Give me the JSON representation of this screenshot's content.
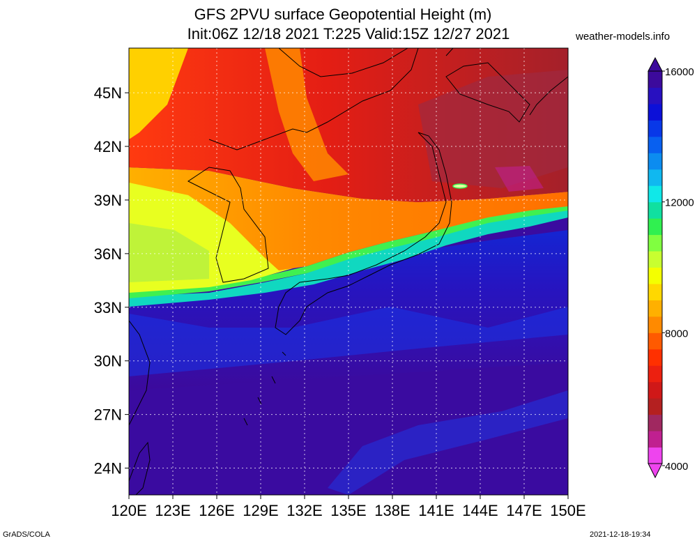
{
  "header": {
    "title": "GFS 2PVU surface Geopotential Height (m)",
    "subtitle": "Init:06Z 12/18 2021 T:225 Valid:15Z 12/27 2021",
    "credit": "weather-models.info"
  },
  "footer": {
    "left": "GrADS/COLA",
    "right": "2021-12-18-19:34"
  },
  "map": {
    "lon_range": [
      120,
      150
    ],
    "lat_range": [
      22.5,
      47.5
    ],
    "lon_ticks": [
      "120E",
      "123E",
      "126E",
      "129E",
      "132E",
      "135E",
      "138E",
      "141E",
      "144E",
      "147E",
      "150E"
    ],
    "lat_ticks": [
      "45N",
      "42N",
      "39N",
      "36N",
      "33N",
      "30N",
      "27N",
      "24N"
    ],
    "grid": "dotted"
  },
  "colorbar": {
    "labels": [
      "16000",
      "12000",
      "8000",
      "4000"
    ],
    "min": 4000,
    "max": 16000,
    "colors": [
      "#ee44ee",
      "#c02090",
      "#a02860",
      "#b42020",
      "#d01818",
      "#ec2010",
      "#ff3000",
      "#ff5a00",
      "#ff8a00",
      "#ffb000",
      "#ffd800",
      "#f4ff00",
      "#c8ff30",
      "#80ff40",
      "#30f050",
      "#10e0a0",
      "#10e8e8",
      "#10b8f0",
      "#0c8cf0",
      "#0860f0",
      "#0838e8",
      "#0c10d8",
      "#2810c0",
      "#3c0a9c"
    ]
  }
}
